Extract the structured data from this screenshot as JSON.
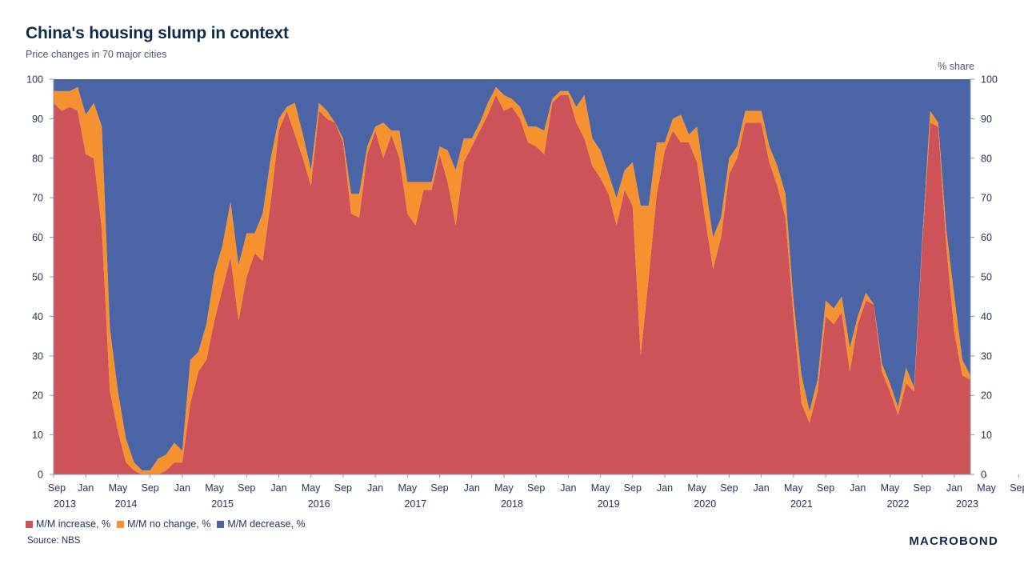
{
  "chart_data": {
    "type": "area",
    "stacked": true,
    "title": "China's housing slump in context",
    "subtitle": "Price changes in 70 major cities",
    "right_axis_label": "% share",
    "source": "Source: NBS",
    "brand": "MACROBOND",
    "ylim": [
      0,
      100
    ],
    "yticks": [
      0,
      10,
      20,
      30,
      40,
      50,
      60,
      70,
      80,
      90,
      100
    ],
    "x_start": {
      "year": 2013,
      "month": 9
    },
    "x_tick_months": [
      "Sep",
      "Jan",
      "May",
      "Sep",
      "Jan",
      "May",
      "Sep",
      "Jan",
      "May",
      "Sep",
      "Jan",
      "May",
      "Sep",
      "Jan",
      "May",
      "Sep",
      "Jan",
      "May",
      "Sep",
      "Jan",
      "May",
      "Sep",
      "Jan",
      "May",
      "Sep",
      "Jan",
      "May",
      "Sep",
      "Jan",
      "May",
      "Sep"
    ],
    "x_tick_years": [
      "2013",
      "2014",
      "2015",
      "2016",
      "2017",
      "2018",
      "2019",
      "2020",
      "2021",
      "2022",
      "2023"
    ],
    "series": [
      {
        "name": "M/M increase, %",
        "color": "#cd5358",
        "values": [
          94,
          92,
          93,
          92,
          81,
          80,
          62,
          21,
          11,
          3,
          1,
          0,
          0,
          0,
          1,
          3,
          3,
          18,
          26,
          29,
          39,
          47,
          55,
          39,
          50,
          56,
          54,
          69,
          87,
          92,
          86,
          80,
          73,
          92,
          90,
          89,
          84,
          66,
          65,
          81,
          87,
          80,
          86,
          80,
          66,
          63,
          72,
          72,
          81,
          74,
          63,
          79,
          83,
          87,
          91,
          96,
          92,
          93,
          90,
          84,
          83,
          81,
          94,
          96,
          96,
          89,
          85,
          78,
          75,
          71,
          63,
          72,
          68,
          30,
          50,
          71,
          82,
          87,
          84,
          84,
          79,
          65,
          52,
          60,
          76,
          80,
          89,
          89,
          89,
          79,
          73,
          65,
          40,
          18,
          13,
          21,
          40,
          38,
          41,
          26,
          38,
          44,
          43,
          26,
          21,
          15,
          23,
          21,
          58,
          89,
          88,
          58,
          36,
          25,
          24
        ],
        "labels": []
      },
      {
        "name": "M/M no change, %",
        "color": "#f5922f",
        "values": [
          3,
          5,
          4,
          6,
          10,
          14,
          26,
          16,
          10,
          6,
          2,
          1,
          1,
          4,
          4,
          5,
          3,
          11,
          5,
          9,
          12,
          11,
          14,
          14,
          11,
          5,
          12,
          11,
          3,
          1,
          8,
          6,
          4,
          2,
          2,
          0,
          1,
          5,
          6,
          2,
          1,
          9,
          1,
          7,
          8,
          11,
          2,
          2,
          2,
          8,
          14,
          6,
          2,
          2,
          3,
          2,
          4,
          2,
          3,
          4,
          5,
          6,
          1,
          1,
          1,
          4,
          11,
          7,
          7,
          5,
          7,
          5,
          11,
          38,
          18,
          13,
          2,
          3,
          7,
          2,
          9,
          9,
          8,
          5,
          4,
          3,
          3,
          3,
          3,
          4,
          5,
          6,
          4,
          7,
          3,
          3,
          4,
          4,
          4,
          6,
          2,
          2,
          0,
          2,
          2,
          2,
          4,
          1,
          1,
          3,
          1,
          4,
          9,
          4,
          1
        ],
        "labels": []
      },
      {
        "name": "M/M decrease, %",
        "color": "#4a64a6",
        "values": [
          3,
          3,
          3,
          2,
          9,
          6,
          12,
          63,
          79,
          91,
          97,
          99,
          99,
          96,
          95,
          92,
          94,
          71,
          69,
          62,
          49,
          42,
          31,
          47,
          39,
          39,
          34,
          20,
          10,
          7,
          6,
          14,
          23,
          6,
          8,
          11,
          15,
          29,
          29,
          17,
          12,
          11,
          13,
          13,
          26,
          26,
          26,
          26,
          17,
          18,
          23,
          15,
          15,
          11,
          6,
          2,
          4,
          5,
          7,
          12,
          12,
          13,
          5,
          3,
          3,
          7,
          4,
          15,
          18,
          24,
          30,
          23,
          21,
          32,
          32,
          16,
          16,
          10,
          9,
          14,
          12,
          26,
          40,
          35,
          20,
          17,
          8,
          8,
          8,
          17,
          22,
          29,
          56,
          75,
          84,
          76,
          56,
          58,
          55,
          68,
          60,
          54,
          57,
          72,
          77,
          83,
          73,
          78,
          41,
          8,
          11,
          38,
          55,
          71,
          75
        ],
        "labels": []
      }
    ]
  }
}
